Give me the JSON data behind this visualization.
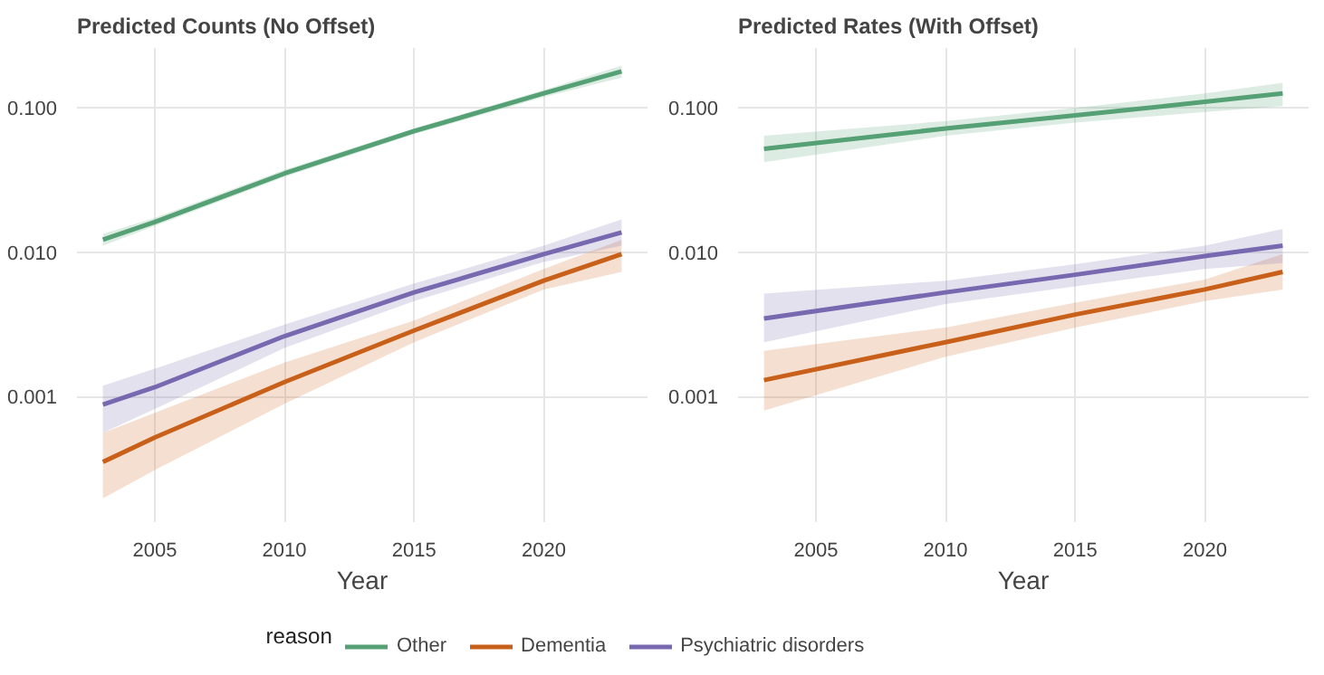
{
  "chart_data": [
    {
      "type": "line",
      "title": "Predicted Counts (No Offset)",
      "xlabel": "Year",
      "log": "y",
      "grid": true,
      "legend": "bottom",
      "legend_title": "reason",
      "xlim": [
        2002,
        2024
      ],
      "xticks": [
        2005,
        2010,
        2015,
        2020
      ],
      "ylim": [
        0.000135,
        0.26
      ],
      "yticks": [
        {
          "value": 0.001,
          "label": "0.001"
        },
        {
          "value": 0.01,
          "label": "0.010"
        },
        {
          "value": 0.1,
          "label": "0.100"
        }
      ],
      "x": [
        2003,
        2005,
        2010,
        2015,
        2020,
        2023
      ],
      "series": [
        {
          "name": "Other",
          "color": "#55a074",
          "values": [
            0.0122,
            0.0162,
            0.0351,
            0.069,
            0.126,
            0.179
          ],
          "lower": [
            0.0111,
            0.0152,
            0.0332,
            0.0657,
            0.119,
            0.162
          ],
          "upper": [
            0.0134,
            0.0173,
            0.0372,
            0.0721,
            0.133,
            0.196
          ]
        },
        {
          "name": "Dementia",
          "color": "#c8601a",
          "values": [
            0.000352,
            0.00052,
            0.00126,
            0.00287,
            0.00635,
            0.0097
          ],
          "lower": [
            0.000197,
            0.00031,
            0.00089,
            0.00238,
            0.00552,
            0.0073
          ],
          "upper": [
            0.00056,
            0.00077,
            0.00172,
            0.00336,
            0.00766,
            0.0122
          ]
        },
        {
          "name": "Psychiatric disorders",
          "color": "#7768b0",
          "values": [
            0.00088,
            0.00116,
            0.00262,
            0.00527,
            0.0097,
            0.0137
          ],
          "lower": [
            0.00056,
            0.00082,
            0.00217,
            0.00458,
            0.00857,
            0.0111
          ],
          "upper": [
            0.00119,
            0.00156,
            0.00315,
            0.00607,
            0.0111,
            0.0169
          ]
        }
      ]
    },
    {
      "type": "line",
      "title": "Predicted Rates (With Offset)",
      "xlabel": "Year",
      "log": "y",
      "grid": true,
      "xlim": [
        2002,
        2024
      ],
      "xticks": [
        2005,
        2010,
        2015,
        2020
      ],
      "ylim": [
        0.000135,
        0.26
      ],
      "yticks": [
        {
          "value": 0.001,
          "label": "0.001"
        },
        {
          "value": 0.01,
          "label": "0.010"
        },
        {
          "value": 0.1,
          "label": "0.100"
        }
      ],
      "x": [
        2003,
        2010,
        2015,
        2020,
        2023
      ],
      "series": [
        {
          "color": "#55a074",
          "values": [
            0.052,
            0.072,
            0.0886,
            0.11,
            0.126
          ],
          "lower": [
            0.042,
            0.064,
            0.079,
            0.0937,
            0.103
          ],
          "upper": [
            0.064,
            0.081,
            0.1,
            0.126,
            0.149
          ]
        },
        {
          "color": "#c8601a",
          "values": [
            0.0013,
            0.00238,
            0.0037,
            0.00552,
            0.0073
          ],
          "lower": [
            0.0008,
            0.00189,
            0.00301,
            0.00458,
            0.00552
          ],
          "upper": [
            0.00207,
            0.00301,
            0.00447,
            0.00647,
            0.0097
          ]
        },
        {
          "color": "#7768b0",
          "values": [
            0.00347,
            0.00527,
            0.00698,
            0.0094,
            0.0111
          ],
          "lower": [
            0.00238,
            0.00437,
            0.00579,
            0.00766,
            0.0084
          ],
          "upper": [
            0.00517,
            0.00635,
            0.00827,
            0.0111,
            0.0145
          ]
        }
      ]
    }
  ]
}
